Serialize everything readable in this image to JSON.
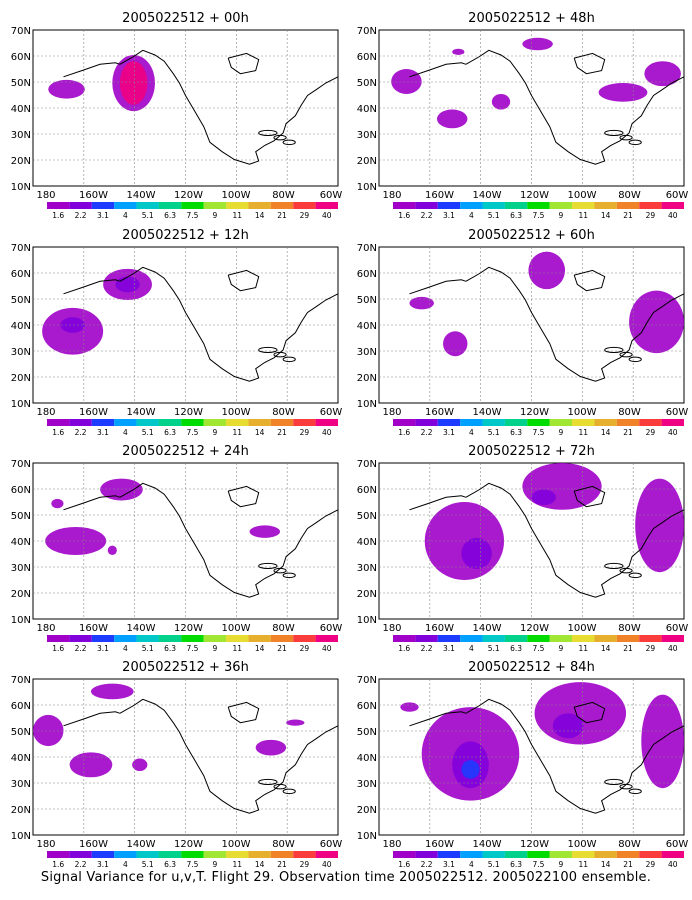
{
  "caption": "Signal Variance for u,v,T. Flight 29. Observation time 2005022512. 2005022100 ensemble.",
  "axes": {
    "lat_labels": [
      "70N",
      "60N",
      "50N",
      "40N",
      "30N",
      "20N",
      "10N"
    ],
    "lon_labels": [
      "180",
      "160W",
      "140W",
      "120W",
      "100W",
      "80W",
      "60W"
    ]
  },
  "colorbar": {
    "labels": [
      "1.6",
      "2.2",
      "3.1",
      "4",
      "5.1",
      "6.3",
      "7.5",
      "9",
      "11",
      "14",
      "21",
      "29",
      "40"
    ],
    "colors": [
      "#a000c8",
      "#8200dc",
      "#1e3cff",
      "#00a0ff",
      "#00c8c8",
      "#00d28c",
      "#00dc00",
      "#a0e632",
      "#e6dc32",
      "#e6af2d",
      "#f08228",
      "#fa3c3c",
      "#f00082"
    ]
  },
  "panels": [
    {
      "title": "2005022512 + 00h"
    },
    {
      "title": "2005022512 + 48h"
    },
    {
      "title": "2005022512 + 12h"
    },
    {
      "title": "2005022512 + 60h"
    },
    {
      "title": "2005022512 + 24h"
    },
    {
      "title": "2005022512 + 72h"
    },
    {
      "title": "2005022512 + 36h"
    },
    {
      "title": "2005022512 + 84h"
    }
  ]
}
